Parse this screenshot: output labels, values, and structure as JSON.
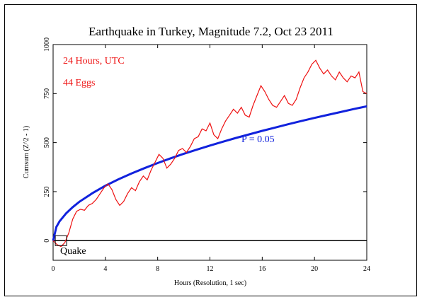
{
  "chart_data": {
    "type": "line",
    "title": "Earthquake in Turkey, Magnitude 7.2, Oct 23 2011",
    "xlabel": "Hours (Resolution, 1 sec)",
    "ylabel": "Cumsum (Z^2 - 1)",
    "xlim": [
      0,
      24
    ],
    "ylim": [
      -100,
      1000
    ],
    "x_ticks": [
      0,
      4,
      8,
      12,
      16,
      20,
      24
    ],
    "y_ticks": [
      0,
      250,
      500,
      750,
      1000
    ],
    "grid": false,
    "annotations": {
      "hours_label": "24 Hours, UTC",
      "eggs_label": "44 Eggs",
      "p_label": "P = 0.05",
      "event_label": "Quake"
    },
    "colors": {
      "cumsum": "#ee1111",
      "probability": "#1122dd",
      "baseline": "#000000",
      "title": "#000000"
    },
    "series": [
      {
        "x": [
          0,
          0.3,
          0.6,
          0.9,
          1.2,
          1.5,
          1.8,
          2.1,
          2.4,
          2.7,
          3.0,
          3.3,
          3.6,
          3.9,
          4.2,
          4.5,
          4.8,
          5.1,
          5.4,
          5.7,
          6.0,
          6.3,
          6.6,
          6.9,
          7.2,
          7.5,
          7.8,
          8.1,
          8.4,
          8.7,
          9.0,
          9.3,
          9.6,
          9.9,
          10.2,
          10.5,
          10.8,
          11.1,
          11.4,
          11.7,
          12.0,
          12.3,
          12.6,
          12.9,
          13.2,
          13.5,
          13.8,
          14.1,
          14.4,
          14.7,
          15.0,
          15.3,
          15.6,
          15.9,
          16.2,
          16.5,
          16.8,
          17.1,
          17.4,
          17.7,
          18.0,
          18.3,
          18.6,
          18.9,
          19.2,
          19.5,
          19.8,
          20.1,
          20.4,
          20.7,
          21.0,
          21.3,
          21.6,
          21.9,
          22.2,
          22.5,
          22.8,
          23.1,
          23.4,
          23.7,
          24.0
        ],
        "values": [
          0,
          -20,
          -30,
          -10,
          40,
          110,
          150,
          160,
          155,
          180,
          190,
          210,
          240,
          270,
          290,
          260,
          210,
          180,
          200,
          240,
          270,
          255,
          300,
          330,
          310,
          360,
          400,
          440,
          420,
          370,
          390,
          420,
          460,
          470,
          450,
          480,
          520,
          530,
          570,
          560,
          600,
          540,
          520,
          570,
          610,
          640,
          670,
          650,
          680,
          640,
          630,
          690,
          740,
          790,
          760,
          720,
          690,
          680,
          710,
          740,
          700,
          690,
          720,
          780,
          830,
          860,
          900,
          920,
          880,
          850,
          870,
          840,
          820,
          860,
          830,
          810,
          840,
          830,
          860,
          760,
          750
        ]
      },
      {
        "x": [
          0,
          0.25,
          0.5,
          1,
          1.5,
          2,
          3,
          4,
          5,
          6,
          7,
          8,
          9,
          10,
          11,
          12,
          13,
          14,
          15,
          16,
          17,
          18,
          19,
          20,
          21,
          22,
          23,
          24
        ],
        "values": [
          0,
          70,
          99,
          140,
          171,
          198,
          242,
          280,
          313,
          343,
          370,
          396,
          420,
          443,
          464,
          485,
          505,
          524,
          542,
          560,
          577,
          594,
          610,
          626,
          641,
          656,
          671,
          685
        ]
      }
    ]
  }
}
